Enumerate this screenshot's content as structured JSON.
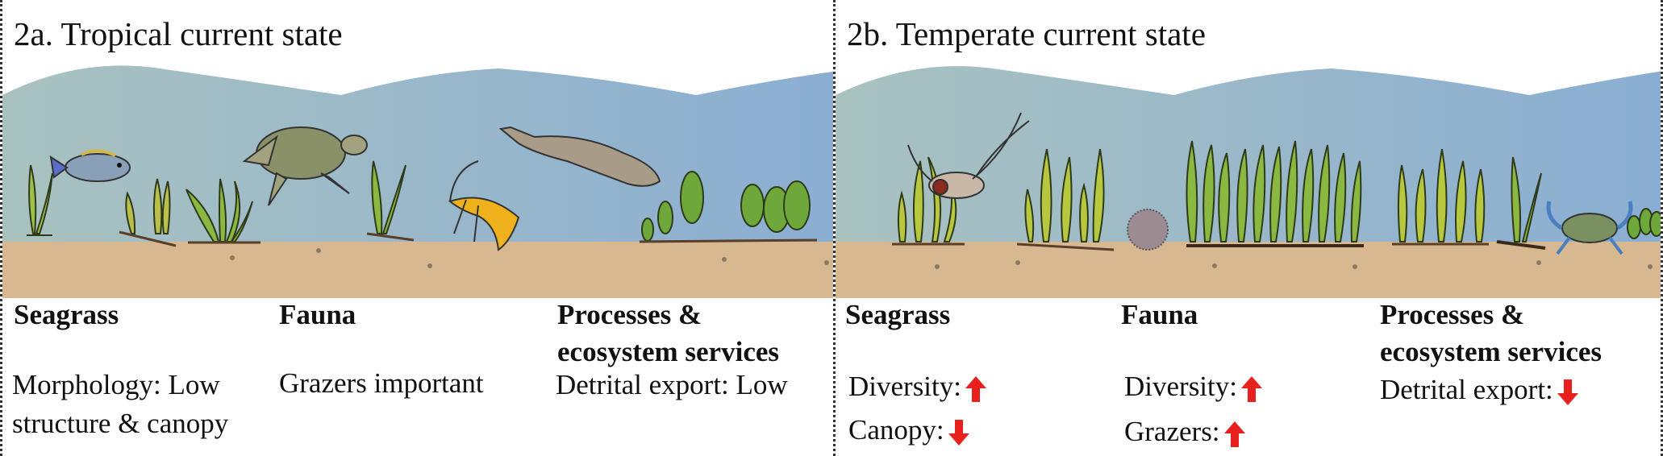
{
  "panels": [
    {
      "title": "2a. Tropical current state",
      "headers": {
        "seagrass": "Seagrass",
        "fauna": "Fauna",
        "processes_l1": "Processes &",
        "processes_l2": "ecosystem services"
      },
      "seagrass_lines": [
        "Morphology: Low",
        "structure & canopy"
      ],
      "fauna_lines": [
        "Grazers important"
      ],
      "processes_lines": [
        "Detrital export: Low"
      ]
    },
    {
      "title": "2b. Temperate current state",
      "headers": {
        "seagrass": "Seagrass",
        "fauna": "Fauna",
        "processes_l1": "Processes &",
        "processes_l2": "ecosystem services"
      },
      "seagrass_items": [
        {
          "label": "Diversity:",
          "trend": "up"
        },
        {
          "label": "Canopy:",
          "trend": "down"
        }
      ],
      "fauna_items": [
        {
          "label": "Diversity:",
          "trend": "up"
        },
        {
          "label": "Grazers:",
          "trend": "up"
        }
      ],
      "processes_items": [
        {
          "label": "Detrital export:",
          "trend": "down"
        }
      ]
    }
  ],
  "colors": {
    "water_left": "#a9c2c3",
    "water_right": "#8fb0d2",
    "sediment": "#d9b993",
    "arrow": "#e8211f",
    "seagrass": "#8ab840"
  }
}
